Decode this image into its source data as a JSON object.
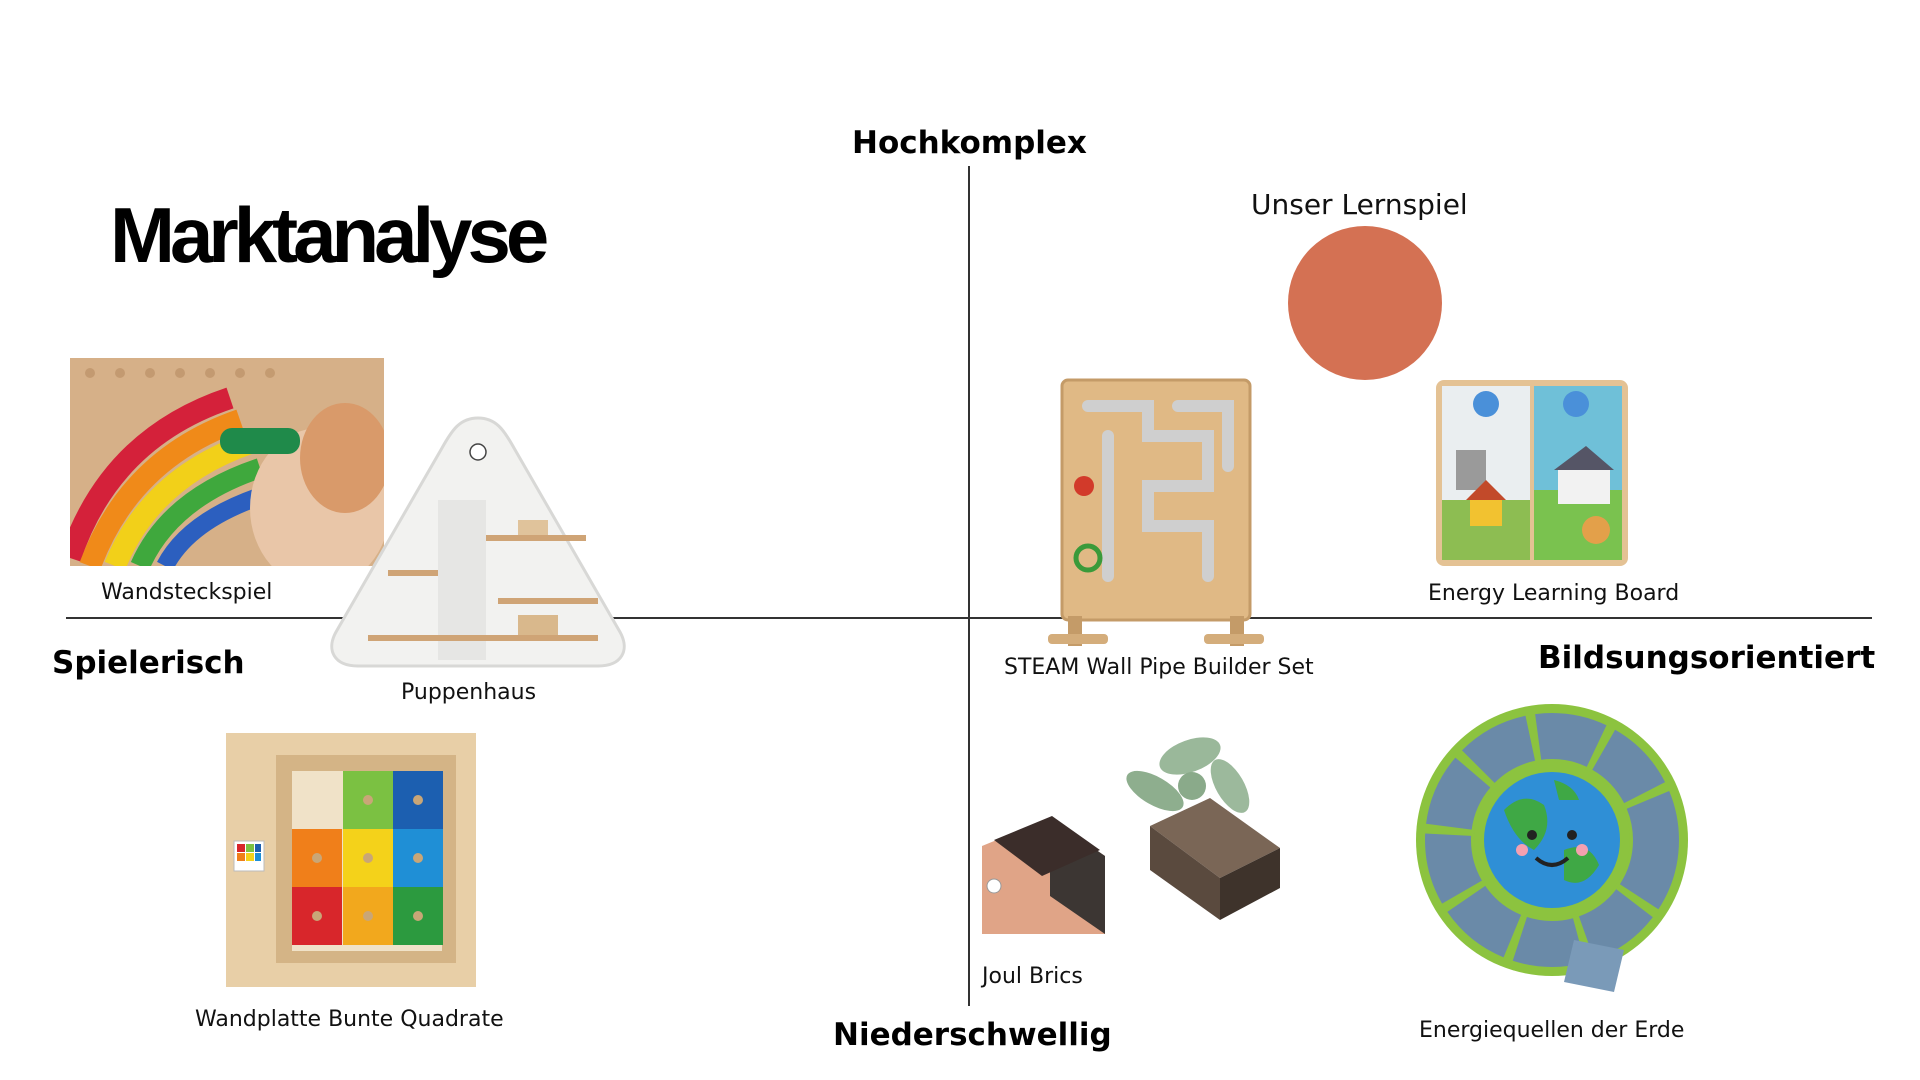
{
  "title": "Marktanalyse",
  "axes": {
    "top": "Hochkomplex",
    "bottom": "Niederschwellig",
    "left": "Spielerisch",
    "right": "Bildsungsorientiert"
  },
  "highlight": {
    "label": "Unser Lernspiel",
    "color": "#D47153"
  },
  "products": [
    {
      "label": "Wandsteckspiel",
      "icon": "peg-board-photo"
    },
    {
      "label": "Puppenhaus",
      "icon": "triangle-dollhouse-photo"
    },
    {
      "label": "Wandplatte Bunte Quadrate",
      "icon": "color-squares-board-photo"
    },
    {
      "label": "STEAM Wall Pipe Builder Set",
      "icon": "pipe-builder-photo"
    },
    {
      "label": "Energy Learning Board",
      "icon": "energy-board-photo"
    },
    {
      "label": "Joul Brics",
      "icon": "joul-brics-photo"
    },
    {
      "label": "Energiequellen der Erde",
      "icon": "earth-puzzle-photo"
    }
  ]
}
